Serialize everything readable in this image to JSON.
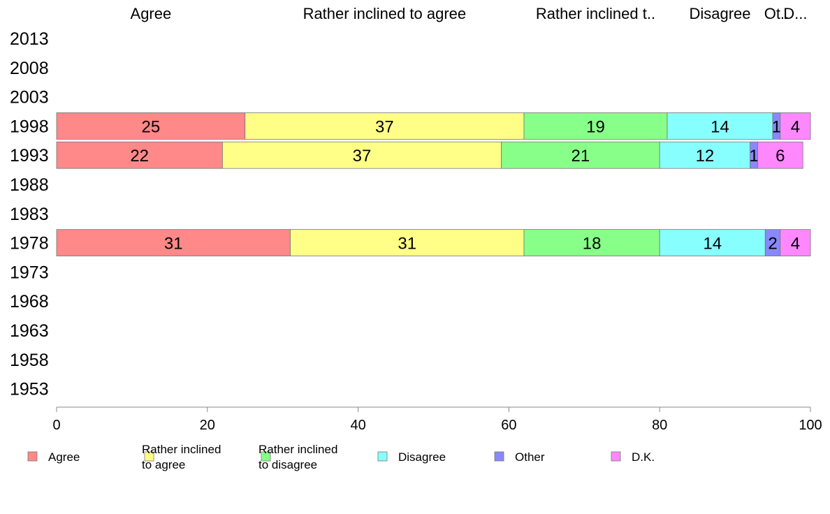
{
  "chart_data": {
    "type": "bar",
    "orientation": "horizontal",
    "stacked": true,
    "categories": [
      "2013",
      "2008",
      "2003",
      "1998",
      "1993",
      "1988",
      "1983",
      "1978",
      "1973",
      "1968",
      "1963",
      "1958",
      "1953"
    ],
    "column_headers": [
      "Agree",
      "Rather inclined to agree",
      "Rather inclined t..",
      "Disagree",
      "Ot..",
      "D..."
    ],
    "series": [
      {
        "name": "Agree",
        "legend": [
          "Agree"
        ],
        "color": "#ff8888",
        "values": [
          null,
          null,
          null,
          25,
          22,
          null,
          null,
          31,
          null,
          null,
          null,
          null,
          null
        ]
      },
      {
        "name": "Rather inclined to agree",
        "legend": [
          "Rather inclined",
          "to agree"
        ],
        "color": "#ffff88",
        "values": [
          null,
          null,
          null,
          37,
          37,
          null,
          null,
          31,
          null,
          null,
          null,
          null,
          null
        ]
      },
      {
        "name": "Rather inclined to disagree",
        "legend": [
          "Rather inclined",
          "to disagree"
        ],
        "color": "#88ff88",
        "values": [
          null,
          null,
          null,
          19,
          21,
          null,
          null,
          18,
          null,
          null,
          null,
          null,
          null
        ]
      },
      {
        "name": "Disagree",
        "legend": [
          "Disagree"
        ],
        "color": "#88ffff",
        "values": [
          null,
          null,
          null,
          14,
          12,
          null,
          null,
          14,
          null,
          null,
          null,
          null,
          null
        ]
      },
      {
        "name": "Other",
        "legend": [
          "Other"
        ],
        "color": "#8888ff",
        "values": [
          null,
          null,
          null,
          1,
          1,
          null,
          null,
          2,
          null,
          null,
          null,
          null,
          null
        ]
      },
      {
        "name": "D.K.",
        "legend": [
          "D.K."
        ],
        "color": "#ff88ff",
        "values": [
          null,
          null,
          null,
          4,
          6,
          null,
          null,
          4,
          null,
          null,
          null,
          null,
          null
        ]
      }
    ],
    "xlim": [
      0,
      100
    ],
    "xticks": [
      "0",
      "20",
      "40",
      "60",
      "80",
      "100"
    ],
    "grid": false,
    "legend_position": "bottom"
  }
}
